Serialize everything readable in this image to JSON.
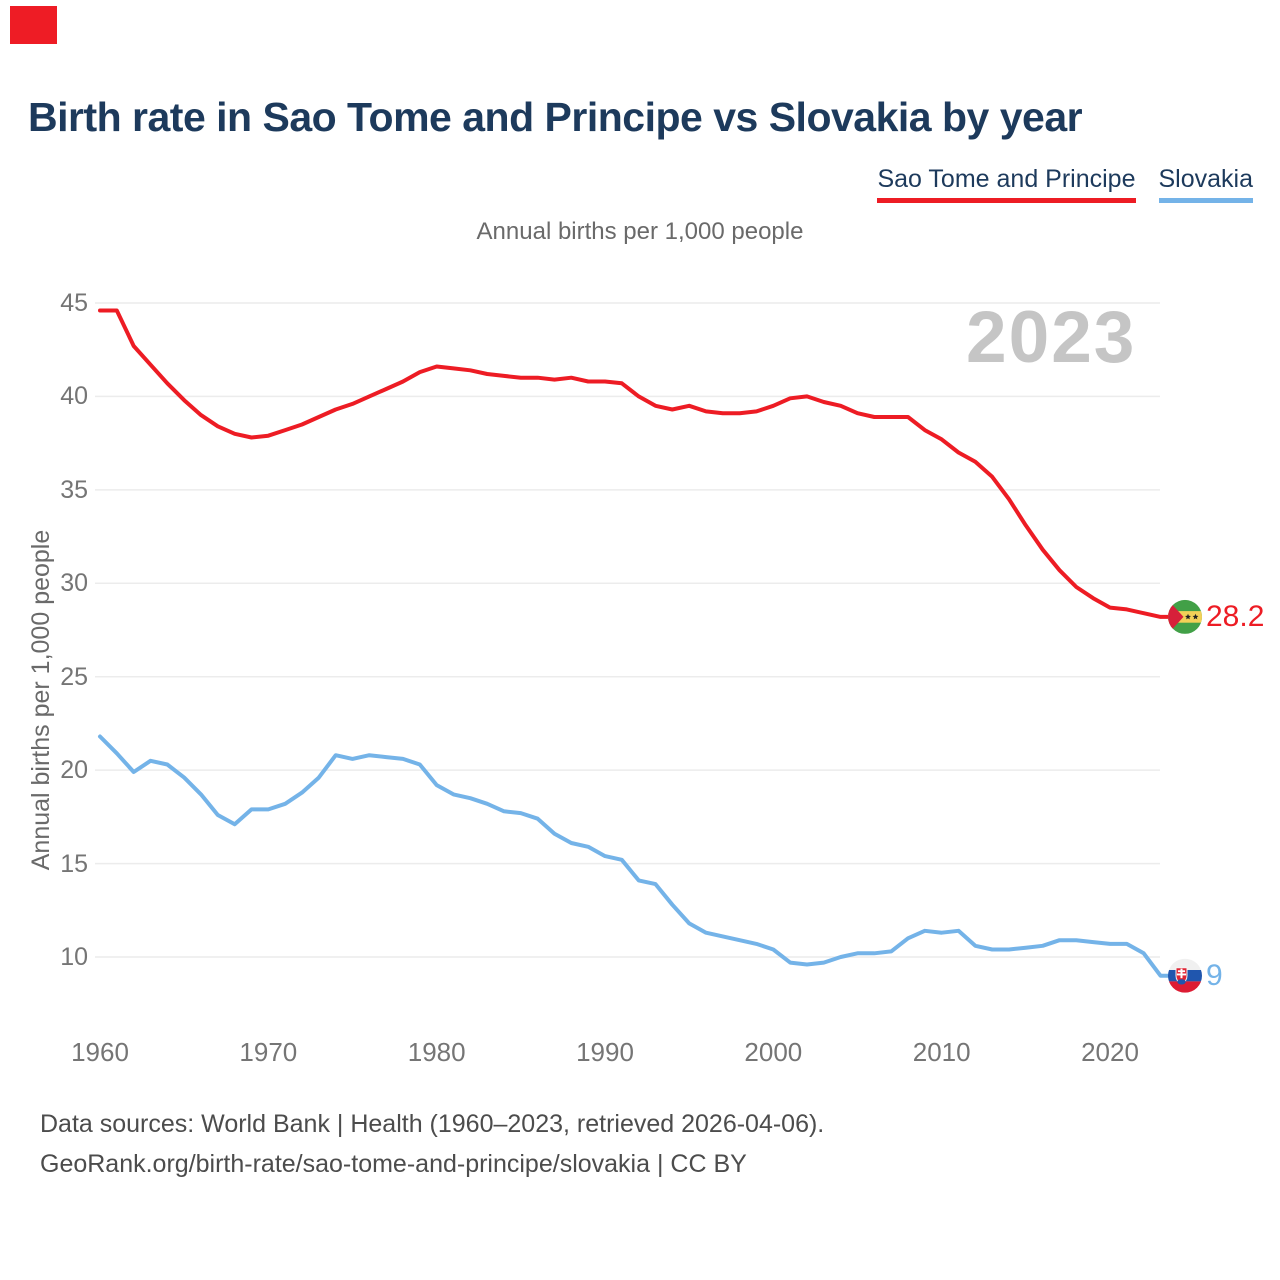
{
  "header": {
    "title": "Birth rate in Sao Tome and Principe vs Slovakia by year"
  },
  "brand_mark_color": "#ee1c25",
  "legend": {
    "items": [
      {
        "label": "Sao Tome and Principe",
        "color": "#ed1c24"
      },
      {
        "label": "Slovakia",
        "color": "#74b3e8"
      }
    ]
  },
  "subtitle": "Annual births per 1,000 people",
  "watermark": "2023",
  "chart_data": {
    "type": "line",
    "title": "Birth rate in Sao Tome and Principe vs Slovakia by year",
    "xlabel": "",
    "ylabel": "Annual births per 1,000 people",
    "x_start_year": 1960,
    "x_end_year": 2023,
    "x_ticks": [
      1960,
      1970,
      1980,
      1990,
      2000,
      2010,
      2020
    ],
    "y_ticks": [
      45,
      40,
      35,
      30,
      25,
      20,
      15,
      10
    ],
    "ylim": [
      8,
      46
    ],
    "grid": "horizontal",
    "legend_position": "top-right",
    "series": [
      {
        "name": "Sao Tome and Principe",
        "color": "#ed1c24",
        "end_label": "28.2",
        "flag": "sao-tome",
        "values": [
          44.6,
          44.6,
          42.7,
          41.7,
          40.7,
          39.8,
          39.0,
          38.4,
          38.0,
          37.8,
          37.9,
          38.2,
          38.5,
          38.9,
          39.3,
          39.6,
          40.0,
          40.4,
          40.8,
          41.3,
          41.6,
          41.5,
          41.4,
          41.2,
          41.1,
          41.0,
          41.0,
          40.9,
          41.0,
          40.8,
          40.8,
          40.7,
          40.0,
          39.5,
          39.3,
          39.5,
          39.2,
          39.1,
          39.1,
          39.2,
          39.5,
          39.9,
          40.0,
          39.7,
          39.5,
          39.1,
          38.9,
          38.9,
          38.9,
          38.2,
          37.7,
          37.0,
          36.5,
          35.7,
          34.5,
          33.1,
          31.8,
          30.7,
          29.8,
          29.2,
          28.7,
          28.6,
          28.4,
          28.2
        ]
      },
      {
        "name": "Slovakia",
        "color": "#74b3e8",
        "end_label": "9",
        "flag": "slovakia",
        "values": [
          21.8,
          20.9,
          19.9,
          20.5,
          20.3,
          19.6,
          18.7,
          17.6,
          17.1,
          17.9,
          17.9,
          18.2,
          18.8,
          19.6,
          20.8,
          20.6,
          20.8,
          20.7,
          20.6,
          20.3,
          19.2,
          18.7,
          18.5,
          18.2,
          17.8,
          17.7,
          17.4,
          16.6,
          16.1,
          15.9,
          15.4,
          15.2,
          14.1,
          13.9,
          12.8,
          11.8,
          11.3,
          11.1,
          10.9,
          10.7,
          10.4,
          9.7,
          9.6,
          9.7,
          10.0,
          10.2,
          10.2,
          10.3,
          11.0,
          11.4,
          11.3,
          11.4,
          10.6,
          10.4,
          10.4,
          10.5,
          10.6,
          10.9,
          10.9,
          10.8,
          10.7,
          10.7,
          10.2,
          9.0
        ]
      }
    ]
  },
  "footer": {
    "line1": "Data sources: World Bank | Health (1960–2023, retrieved 2026-04-06).",
    "line2": "GeoRank.org/birth-rate/sao-tome-and-principe/slovakia | CC BY"
  },
  "colors": {
    "title": "#1d3a5c",
    "tick": "#757575",
    "grid": "#ececec",
    "watermark": "#c5c5c5",
    "footer": "#4c4c4c"
  }
}
